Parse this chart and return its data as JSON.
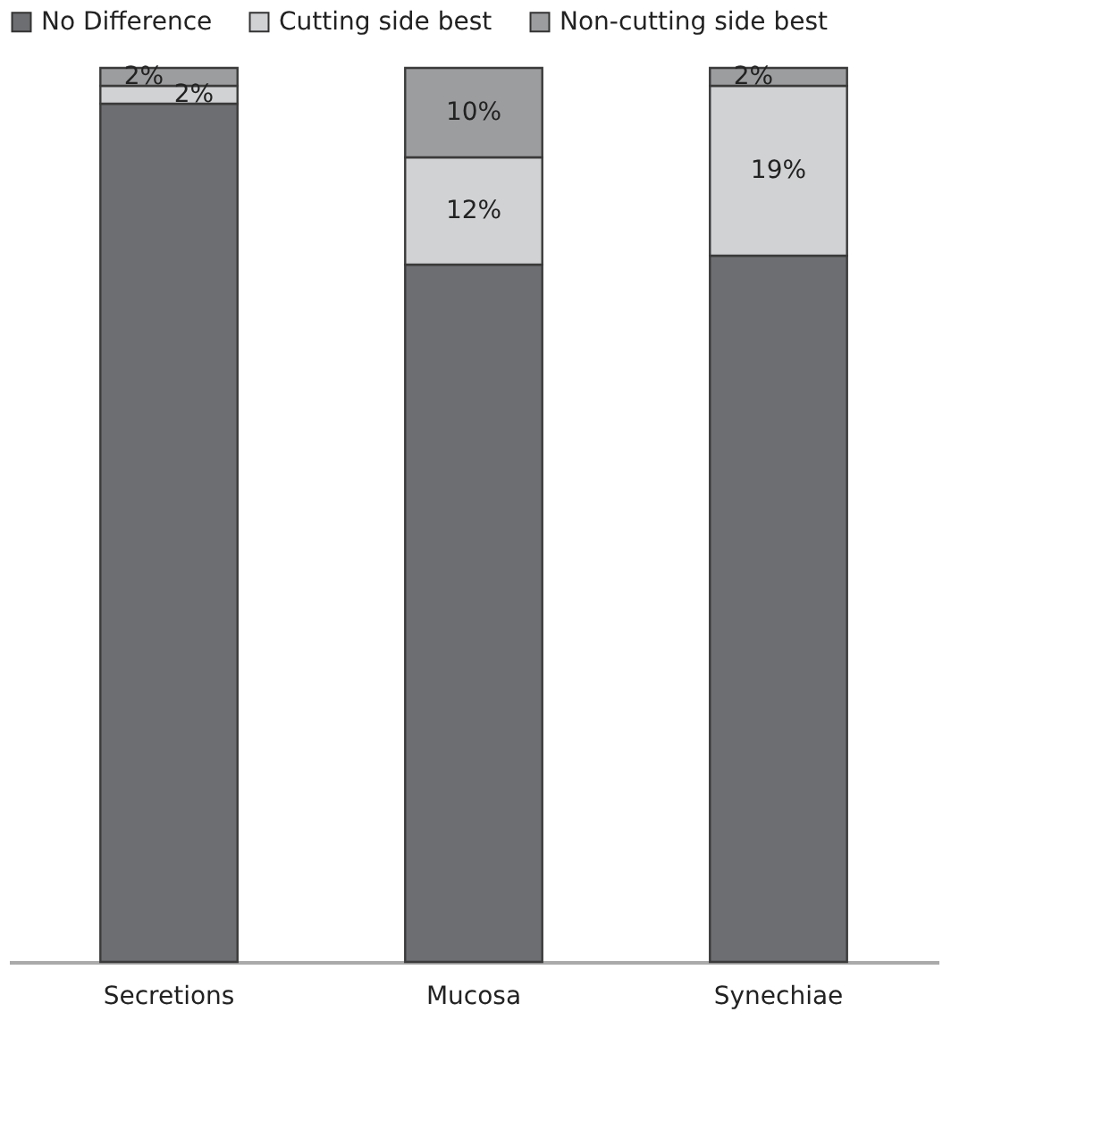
{
  "chart_data": {
    "type": "bar",
    "stacked": true,
    "legend": "top",
    "ylim": [
      0,
      100
    ],
    "categories": [
      "Secretions",
      "Mucosa",
      "Synechiae"
    ],
    "series": [
      {
        "name": "No Difference",
        "color": "#6d6e71",
        "values": [
          96,
          78,
          79
        ],
        "value_labels": [
          null,
          null,
          null
        ]
      },
      {
        "name": "Cutting side best",
        "color": "#d1d2d4",
        "values": [
          2,
          12,
          19
        ],
        "value_labels": [
          "2%",
          "12%",
          "19%"
        ]
      },
      {
        "name": "Non-cutting side best",
        "color": "#9c9d9f",
        "values": [
          2,
          10,
          2
        ],
        "value_labels": [
          "2%",
          "10%",
          "2%"
        ]
      }
    ]
  }
}
